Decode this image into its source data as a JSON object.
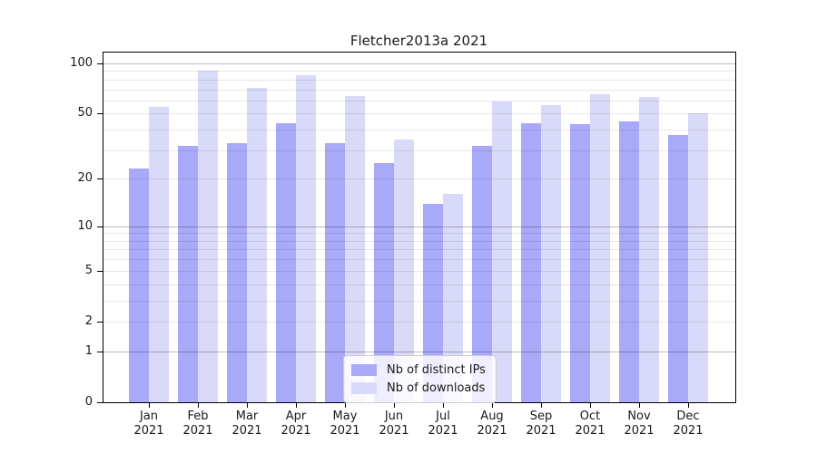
{
  "window": {
    "background": "#ffffff"
  },
  "chart_data": {
    "type": "bar",
    "title": "Fletcher2013a 2021",
    "categories": [
      "Jan",
      "Feb",
      "Mar",
      "Apr",
      "May",
      "Jun",
      "Jul",
      "Aug",
      "Sep",
      "Oct",
      "Nov",
      "Dec"
    ],
    "category_year_label": "2021",
    "series": [
      {
        "name": "Nb of distinct IPs",
        "key": "distinct-ips",
        "color": "#a9a9fa",
        "values": [
          23,
          32,
          33,
          44,
          33,
          25,
          14,
          32,
          44,
          43,
          45,
          37
        ]
      },
      {
        "name": "Nb of downloads",
        "key": "downloads",
        "color": "#d9d9f9",
        "values": [
          55,
          90,
          71,
          85,
          64,
          35,
          16,
          59,
          56,
          65,
          63,
          50
        ]
      }
    ],
    "xlabel": "",
    "ylabel": "",
    "yscale": "symlog (log10 of 1+value)",
    "ylim": [
      0,
      117
    ],
    "yticks": [
      0,
      1,
      2,
      5,
      10,
      20,
      50,
      100
    ],
    "grid": {
      "on": true,
      "major_values": [
        1,
        10,
        100
      ],
      "minor_values": [
        2,
        3,
        4,
        5,
        6,
        7,
        8,
        9,
        20,
        30,
        40,
        50,
        60,
        70,
        80,
        90
      ]
    },
    "legend": {
      "position": "lower center",
      "entries": [
        "Nb of distinct IPs",
        "Nb of downloads"
      ]
    },
    "colors": {
      "distinct_ips_bar": "#a9a9fa",
      "downloads_bar": "#d9d9f9",
      "spine": "#000000",
      "grid_major": "#bdbdbd",
      "grid_minor": "#e9e9e9",
      "text": "#1a1a1a",
      "background": "#ffffff"
    }
  }
}
